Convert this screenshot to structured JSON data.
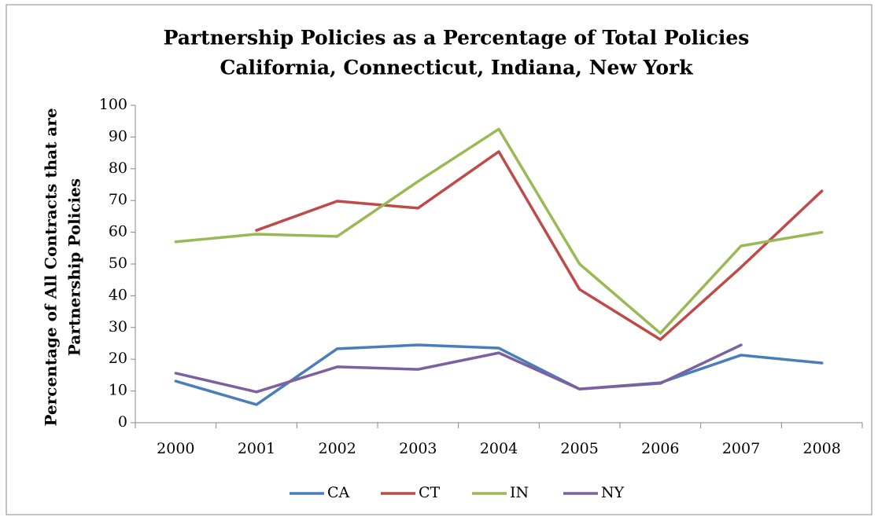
{
  "chart_data": {
    "type": "line",
    "title": [
      "Partnership Policies as a Percentage of Total Policies",
      "California, Connecticut, Indiana, New York"
    ],
    "ylabel": [
      "Percentage of All Contracts that are",
      "Partnership Policies"
    ],
    "categories": [
      "2000",
      "2001",
      "2002",
      "2003",
      "2004",
      "2005",
      "2006",
      "2007",
      "2008"
    ],
    "series": [
      {
        "name": "CA",
        "color": "#4a7ebb",
        "values": [
          13.1,
          5.7,
          23.3,
          24.5,
          23.5,
          10.6,
          12.6,
          21.3,
          18.8
        ]
      },
      {
        "name": "CT",
        "color": "#be4b48",
        "values": [
          null,
          60.6,
          69.8,
          67.6,
          85.4,
          42,
          26.2,
          49,
          73
        ]
      },
      {
        "name": "IN",
        "color": "#98b954",
        "values": [
          57,
          59.4,
          58.7,
          76,
          92.5,
          50,
          28.2,
          55.7,
          60
        ]
      },
      {
        "name": "NY",
        "color": "#7d60a0",
        "values": [
          15.6,
          9.7,
          17.6,
          16.8,
          22,
          10.6,
          12.4,
          24.5,
          null
        ]
      }
    ],
    "ylim": [
      0,
      100
    ],
    "yticks": [
      0,
      10,
      20,
      30,
      40,
      50,
      60,
      70,
      80,
      90,
      100
    ],
    "grid": false,
    "legend": "bottom"
  }
}
